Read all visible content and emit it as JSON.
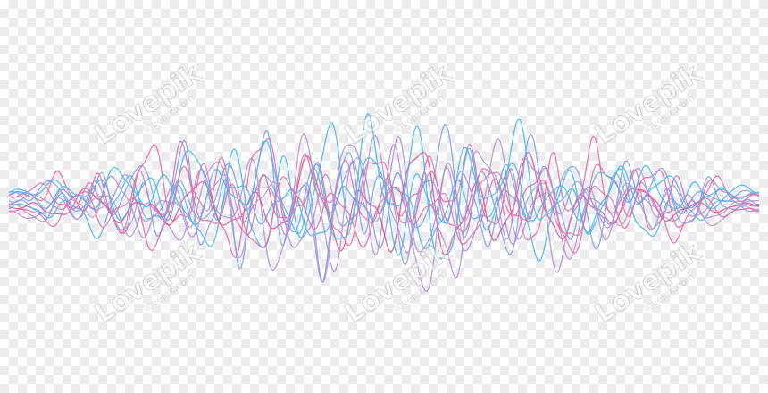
{
  "watermark": {
    "logo_text": "Lovepik",
    "url_text": "lovepik.com"
  },
  "colors": {
    "cyan": "#3fb8e6",
    "blue": "#7f9fe3",
    "purple": "#b28fd4",
    "pink": "#e46aa6",
    "magenta": "#df4f93"
  }
}
